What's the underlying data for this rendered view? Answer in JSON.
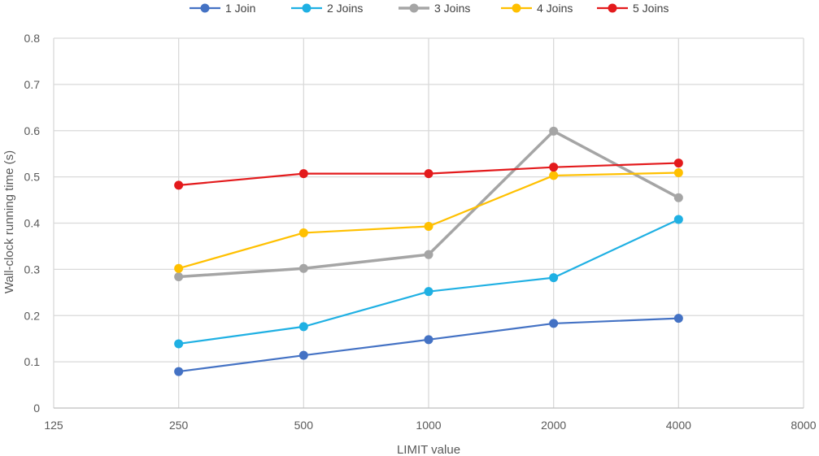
{
  "chart_data": {
    "type": "line",
    "title": "",
    "xlabel": "LIMIT value",
    "ylabel": "Wall-clock running time (s)",
    "x_scale": "log2",
    "x_ticks": [
      125,
      250,
      500,
      1000,
      2000,
      4000,
      8000
    ],
    "xlim": [
      125,
      8000
    ],
    "y_ticks": [
      0,
      0.1,
      0.2,
      0.3,
      0.4,
      0.5,
      0.6,
      0.7,
      0.8
    ],
    "y_tick_labels": [
      "0",
      "0.1",
      "0.2",
      "0.3",
      "0.4",
      "0.5",
      "0.6",
      "0.7",
      "0.8"
    ],
    "ylim": [
      0,
      0.8
    ],
    "grid": true,
    "legend_position": "top",
    "x": [
      250,
      500,
      1000,
      2000,
      4000
    ],
    "series": [
      {
        "name": "1 Join",
        "color": "#4472c4",
        "values": [
          0.079,
          0.114,
          0.148,
          0.183,
          0.194
        ]
      },
      {
        "name": "2 Joins",
        "color": "#1fb0e3",
        "values": [
          0.139,
          0.176,
          0.252,
          0.282,
          0.408
        ]
      },
      {
        "name": "3 Joins",
        "color": "#a5a5a5",
        "values": [
          0.284,
          0.302,
          0.332,
          0.599,
          0.455
        ]
      },
      {
        "name": "4 Joins",
        "color": "#ffc000",
        "values": [
          0.302,
          0.379,
          0.393,
          0.503,
          0.509
        ]
      },
      {
        "name": "5 Joins",
        "color": "#e31a1c",
        "values": [
          0.482,
          0.507,
          0.507,
          0.521,
          0.53
        ]
      }
    ]
  }
}
